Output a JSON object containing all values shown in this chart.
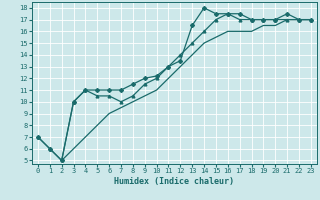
{
  "xlabel": "Humidex (Indice chaleur)",
  "xlim": [
    -0.5,
    23.5
  ],
  "ylim": [
    4.7,
    18.5
  ],
  "xticks": [
    0,
    1,
    2,
    3,
    4,
    5,
    6,
    7,
    8,
    9,
    10,
    11,
    12,
    13,
    14,
    15,
    16,
    17,
    18,
    19,
    20,
    21,
    22,
    23
  ],
  "yticks": [
    5,
    6,
    7,
    8,
    9,
    10,
    11,
    12,
    13,
    14,
    15,
    16,
    17,
    18
  ],
  "background_color": "#cde8ea",
  "line_color": "#1a6b6b",
  "grid_color": "#ffffff",
  "line1_x": [
    0,
    1,
    2,
    3,
    4,
    5,
    6,
    7,
    8,
    9,
    10,
    11,
    12,
    13,
    14,
    15,
    16,
    17,
    18,
    19,
    20,
    21,
    22,
    23
  ],
  "line1_y": [
    7,
    6,
    5,
    10,
    11,
    11,
    11,
    11,
    11.5,
    12,
    12.2,
    13,
    13.5,
    16.5,
    18,
    17.5,
    17.5,
    17.5,
    17,
    17,
    17,
    17.5,
    17,
    17
  ],
  "line2_x": [
    0,
    1,
    2,
    3,
    4,
    5,
    6,
    7,
    8,
    9,
    10,
    11,
    12,
    13,
    14,
    15,
    16,
    17,
    18,
    19,
    20,
    21,
    22,
    23
  ],
  "line2_y": [
    7,
    6,
    5,
    10,
    11,
    10.5,
    10.5,
    10,
    10.5,
    11.5,
    12,
    13,
    14,
    15,
    16,
    17,
    17.5,
    17,
    17,
    17,
    17,
    17,
    17,
    17
  ],
  "line3_x": [
    2,
    3,
    4,
    5,
    6,
    7,
    8,
    9,
    10,
    11,
    12,
    13,
    14,
    15,
    16,
    17,
    18,
    19,
    20,
    21,
    22,
    23
  ],
  "line3_y": [
    5,
    6,
    7,
    8,
    9,
    9.5,
    10,
    10.5,
    11,
    12,
    13,
    14,
    15,
    15.5,
    16,
    16,
    16,
    16.5,
    16.5,
    17,
    17,
    17
  ],
  "tick_fontsize": 5.0,
  "xlabel_fontsize": 6.0,
  "figsize": [
    3.2,
    2.0
  ],
  "dpi": 100
}
